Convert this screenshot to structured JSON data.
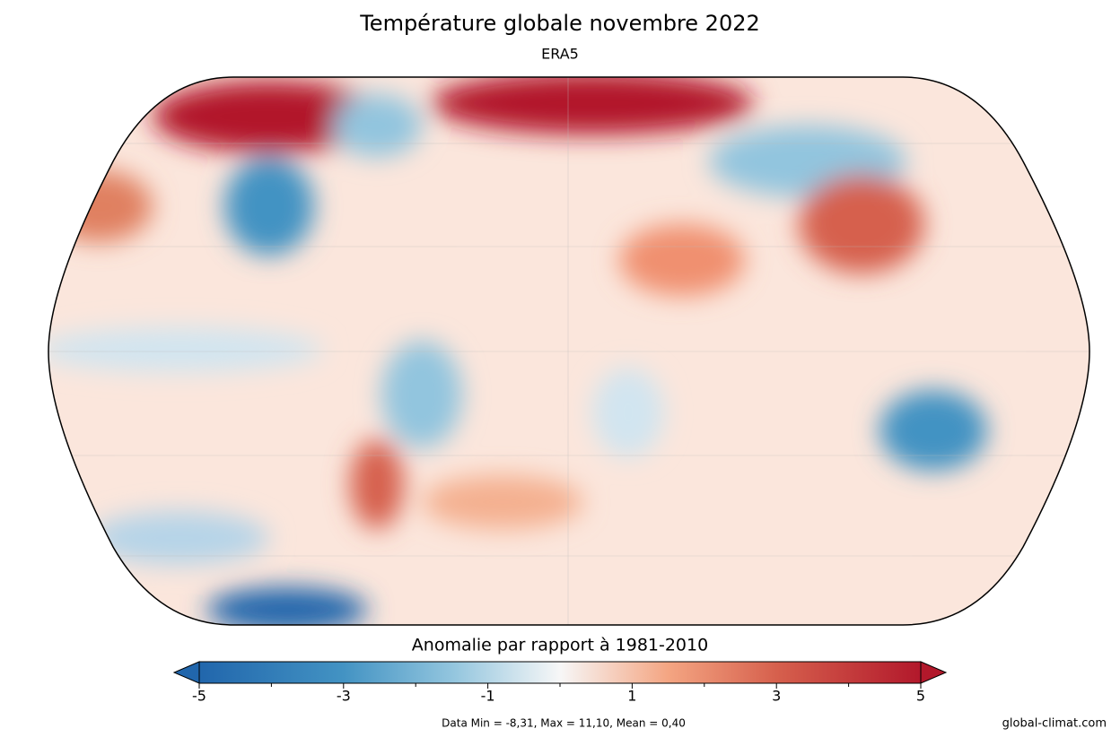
{
  "title": "Température globale novembre 2022",
  "subtitle": "ERA5",
  "colorbar": {
    "label": "Anomalie par rapport à 1981-2010",
    "lim": [
      -5,
      5
    ],
    "ticks": [
      -5,
      -3,
      -1,
      1,
      3,
      5
    ],
    "minor_ticks": [
      -4,
      -2,
      0,
      2,
      4
    ]
  },
  "stats": "Data Min = -8,31, Max = 11,10, Mean = 0,40",
  "credit": "global-climat.com"
}
